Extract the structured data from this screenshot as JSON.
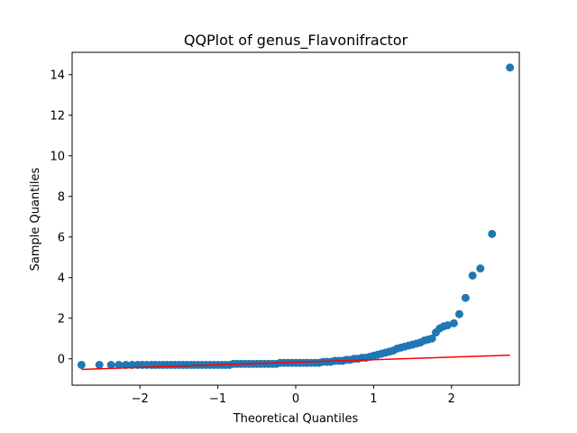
{
  "chart_data": {
    "type": "scatter",
    "title": "QQPlot of genus_Flavonifractor",
    "xlabel": "Theoretical Quantiles",
    "ylabel": "Sample Quantiles",
    "xlim": [
      -2.87,
      2.87
    ],
    "ylim": [
      -1.3,
      15.1
    ],
    "xticks": [
      -2,
      -1,
      0,
      1,
      2
    ],
    "yticks": [
      0,
      2,
      4,
      6,
      8,
      10,
      12,
      14
    ],
    "grid": false,
    "colors": {
      "points": "#1f77b4",
      "line": "#ff0000"
    },
    "reference_line": {
      "x": [
        -2.75,
        2.75
      ],
      "y": [
        -0.52,
        0.18
      ]
    },
    "points": {
      "x": [
        -2.75,
        -2.52,
        -2.37,
        -2.27,
        -2.18,
        -2.1,
        -2.03,
        -1.97,
        -1.91,
        -1.85,
        -1.8,
        -1.75,
        -1.7,
        -1.65,
        -1.6,
        -1.55,
        -1.5,
        -1.45,
        -1.4,
        -1.35,
        -1.3,
        -1.25,
        -1.2,
        -1.15,
        -1.1,
        -1.05,
        -1.0,
        -0.95,
        -0.9,
        -0.85,
        -0.8,
        -0.75,
        -0.7,
        -0.65,
        -0.6,
        -0.55,
        -0.5,
        -0.45,
        -0.4,
        -0.35,
        -0.3,
        -0.25,
        -0.2,
        -0.15,
        -0.1,
        -0.05,
        0.0,
        0.05,
        0.1,
        0.15,
        0.2,
        0.25,
        0.3,
        0.35,
        0.4,
        0.45,
        0.5,
        0.55,
        0.6,
        0.65,
        0.7,
        0.75,
        0.8,
        0.85,
        0.9,
        0.95,
        1.0,
        1.05,
        1.1,
        1.15,
        1.2,
        1.25,
        1.3,
        1.35,
        1.4,
        1.45,
        1.5,
        1.55,
        1.6,
        1.65,
        1.7,
        1.75,
        1.8,
        1.85,
        1.9,
        1.95,
        2.03,
        2.1,
        2.18,
        2.27,
        2.37,
        2.52,
        2.75
      ],
      "y": [
        -0.3,
        -0.3,
        -0.3,
        -0.3,
        -0.3,
        -0.3,
        -0.3,
        -0.3,
        -0.3,
        -0.3,
        -0.3,
        -0.3,
        -0.3,
        -0.3,
        -0.3,
        -0.3,
        -0.3,
        -0.3,
        -0.3,
        -0.3,
        -0.3,
        -0.3,
        -0.3,
        -0.3,
        -0.3,
        -0.3,
        -0.3,
        -0.3,
        -0.3,
        -0.3,
        -0.25,
        -0.25,
        -0.25,
        -0.25,
        -0.25,
        -0.25,
        -0.25,
        -0.25,
        -0.25,
        -0.25,
        -0.25,
        -0.25,
        -0.2,
        -0.2,
        -0.2,
        -0.2,
        -0.2,
        -0.2,
        -0.2,
        -0.2,
        -0.2,
        -0.2,
        -0.2,
        -0.15,
        -0.15,
        -0.15,
        -0.1,
        -0.1,
        -0.1,
        -0.05,
        -0.05,
        0.0,
        0.0,
        0.05,
        0.05,
        0.1,
        0.15,
        0.2,
        0.25,
        0.3,
        0.35,
        0.4,
        0.5,
        0.55,
        0.6,
        0.65,
        0.7,
        0.75,
        0.8,
        0.9,
        0.95,
        1.0,
        1.3,
        1.5,
        1.6,
        1.65,
        1.75,
        2.2,
        3.0,
        4.1,
        4.45,
        6.15,
        14.35
      ]
    }
  }
}
